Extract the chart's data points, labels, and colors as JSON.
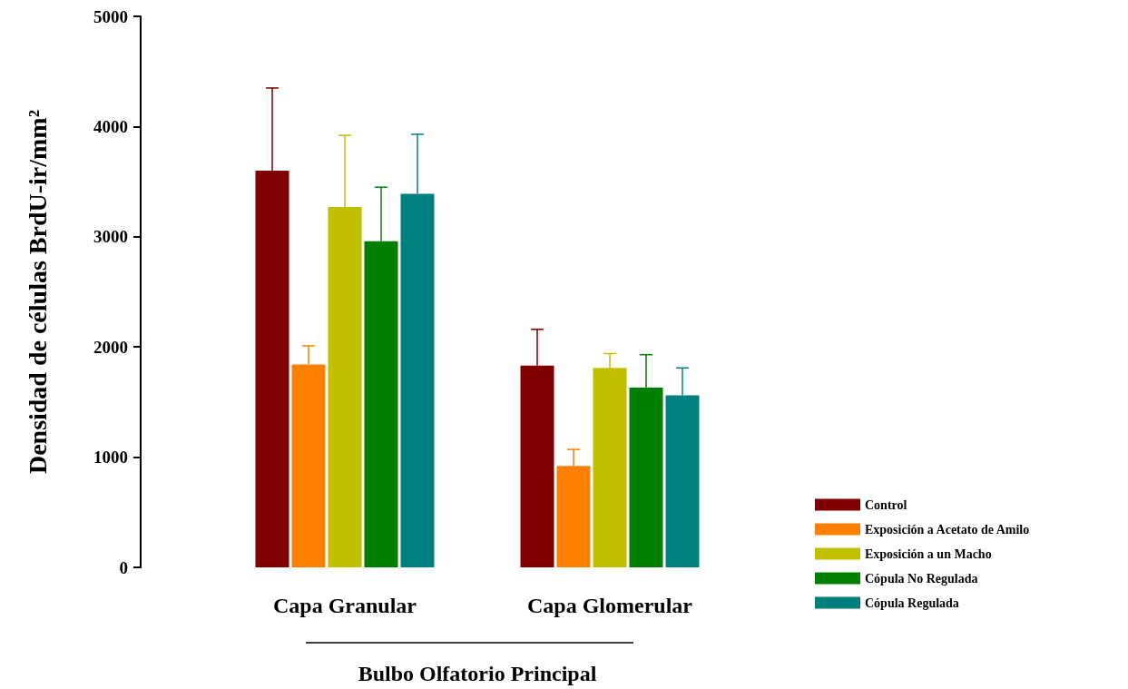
{
  "chart_data": {
    "type": "bar",
    "xlabel": "Bulbo Olfatorio Principal",
    "ylabel": "Densidad de células BrdU-ir/mm²",
    "categories": [
      "Capa Granular",
      "Capa Glomerular"
    ],
    "series": [
      {
        "name": "Control",
        "color": "#800000",
        "values": [
          3600,
          1830
        ],
        "errors": [
          [
            3600,
            4350
          ],
          [
            1830,
            2160
          ]
        ]
      },
      {
        "name": "Exposición a Acetato de Amilo",
        "color": "#ff8000",
        "values": [
          1840,
          920
        ],
        "errors": [
          [
            1840,
            2010
          ],
          [
            920,
            1070
          ]
        ]
      },
      {
        "name": "Exposición a un Macho",
        "color": "#c0c000",
        "values": [
          3270,
          1810
        ],
        "errors": [
          [
            3270,
            3920
          ],
          [
            1810,
            1940
          ]
        ]
      },
      {
        "name": "Cópula No Regulada",
        "color": "#008000",
        "values": [
          2960,
          1630
        ],
        "errors": [
          [
            2960,
            3450
          ],
          [
            1630,
            1930
          ]
        ]
      },
      {
        "name": "Cópula Regulada",
        "color": "#008080",
        "values": [
          3390,
          1560
        ],
        "errors": [
          [
            3390,
            3930
          ],
          [
            1560,
            1810
          ]
        ]
      }
    ],
    "ylim": [
      0,
      5000
    ],
    "yticks": [
      0,
      1000,
      2000,
      3000,
      4000,
      5000
    ],
    "grid": false,
    "legend": "bottom right"
  }
}
